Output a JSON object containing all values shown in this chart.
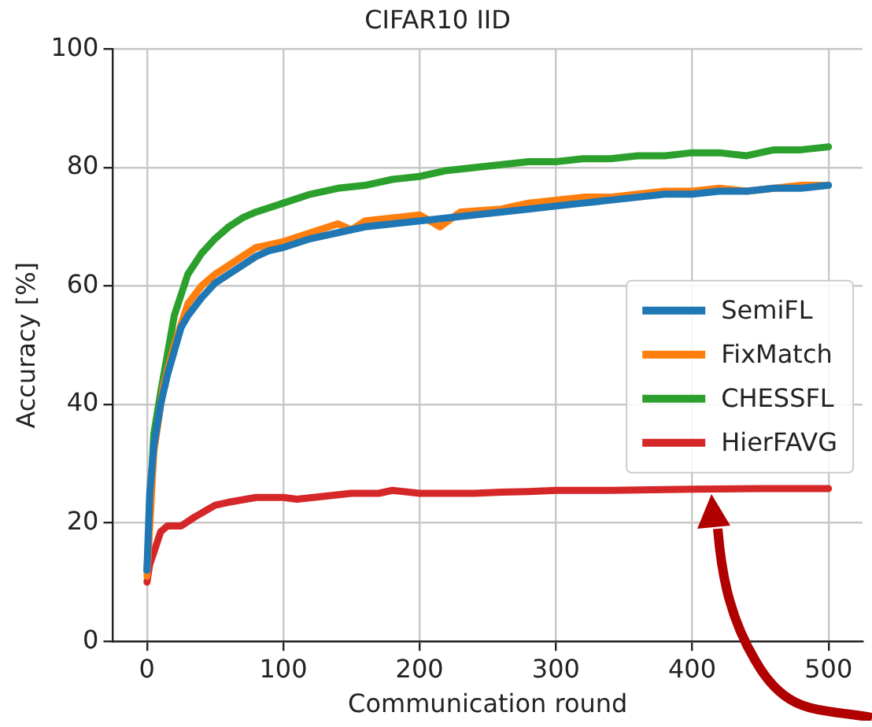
{
  "chart_data": {
    "type": "line",
    "title": "CIFAR10 IID",
    "xlabel": "Communication round",
    "ylabel": "Accuracy [%]",
    "xlim": [
      -25,
      525
    ],
    "xticks": [
      0,
      100,
      200,
      300,
      400,
      500
    ],
    "ylim": [
      0,
      100
    ],
    "yticks": [
      0,
      20,
      40,
      60,
      80,
      100
    ],
    "grid": true,
    "legend": "right",
    "marker": "none",
    "line_style": "solid",
    "series": [
      {
        "name": "SemiFL",
        "color": "#1f77b4",
        "x": [
          0,
          2,
          5,
          10,
          15,
          20,
          25,
          30,
          40,
          50,
          60,
          70,
          80,
          90,
          100,
          120,
          140,
          160,
          180,
          200,
          220,
          240,
          260,
          280,
          300,
          320,
          340,
          360,
          380,
          400,
          420,
          440,
          460,
          480,
          500
        ],
        "values": [
          12,
          25,
          33,
          40,
          45,
          49,
          53,
          55,
          58,
          60.5,
          62,
          63.5,
          65,
          66,
          66.5,
          68,
          69,
          70,
          70.5,
          71,
          71.5,
          72,
          72.5,
          73,
          73.5,
          74,
          74.5,
          75,
          75.5,
          75.5,
          76,
          76,
          76.5,
          76.5,
          77
        ]
      },
      {
        "name": "FixMatch",
        "color": "#ff7f0e",
        "x": [
          0,
          5,
          12,
          20,
          30,
          40,
          50,
          60,
          70,
          80,
          100,
          120,
          140,
          150,
          160,
          180,
          200,
          215,
          230,
          260,
          280,
          300,
          320,
          340,
          360,
          380,
          400,
          420,
          440,
          460,
          480,
          500
        ],
        "values": [
          11,
          32,
          43,
          50,
          57,
          60,
          62,
          63.5,
          65,
          66.5,
          67.5,
          69,
          70.5,
          69.5,
          71,
          71.5,
          72,
          70,
          72.5,
          73,
          74,
          74.5,
          75,
          75,
          75.5,
          76,
          76,
          76.5,
          76,
          76.5,
          77,
          77
        ]
      },
      {
        "name": "CHESSFL",
        "color": "#2ca02c",
        "x": [
          0,
          5,
          10,
          20,
          30,
          40,
          50,
          60,
          70,
          80,
          100,
          120,
          140,
          160,
          180,
          200,
          220,
          240,
          260,
          280,
          300,
          320,
          340,
          360,
          380,
          400,
          420,
          440,
          460,
          480,
          500
        ],
        "values": [
          12,
          35,
          42,
          55,
          62,
          65.5,
          68,
          70,
          71.5,
          72.5,
          74,
          75.5,
          76.5,
          77,
          78,
          78.5,
          79.5,
          80,
          80.5,
          81,
          81,
          81.5,
          81.5,
          82,
          82,
          82.5,
          82.5,
          82,
          83,
          83,
          83.5
        ]
      },
      {
        "name": "HierFAVG",
        "color": "#d62728",
        "x": [
          0,
          2,
          5,
          10,
          15,
          25,
          35,
          50,
          60,
          80,
          100,
          110,
          130,
          150,
          170,
          180,
          200,
          220,
          240,
          260,
          280,
          300,
          340,
          400,
          450,
          500
        ],
        "values": [
          10,
          13,
          15,
          18.5,
          19.5,
          19.5,
          21,
          23,
          23.5,
          24.3,
          24.3,
          24,
          24.5,
          25,
          25,
          25.5,
          25,
          25,
          25,
          25.2,
          25.3,
          25.5,
          25.5,
          25.7,
          25.8,
          25.8
        ]
      }
    ]
  }
}
